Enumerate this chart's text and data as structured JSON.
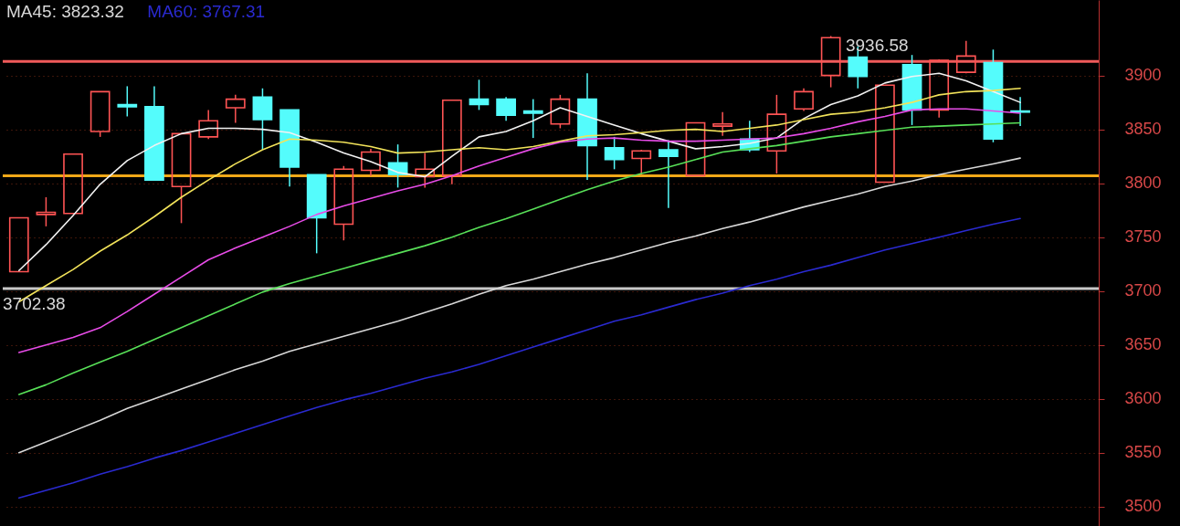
{
  "chart_data": {
    "type": "candlestick",
    "categories": [
      null,
      null,
      null,
      null,
      null,
      null,
      null,
      null,
      null,
      null,
      null,
      null,
      null,
      null,
      null,
      null,
      null,
      null,
      null,
      null,
      null,
      null,
      null,
      null,
      null,
      null,
      null,
      null,
      null,
      null,
      null,
      null,
      null,
      null,
      null,
      null,
      null,
      null
    ],
    "ohlc": [
      [
        3718,
        3768,
        3718,
        3768
      ],
      [
        3771,
        3787,
        3760,
        3773
      ],
      [
        3772,
        3827,
        3772,
        3827
      ],
      [
        3848,
        3885,
        3843,
        3885
      ],
      [
        3873,
        3890,
        3862,
        3871
      ],
      [
        3871,
        3890,
        3803,
        3803
      ],
      [
        3797,
        3846,
        3763,
        3846
      ],
      [
        3843,
        3868,
        3841,
        3858
      ],
      [
        3870,
        3882,
        3856,
        3878
      ],
      [
        3880,
        3888,
        3831,
        3859
      ],
      [
        3868,
        3868,
        3797,
        3815
      ],
      [
        3808,
        3808,
        3735,
        3768
      ],
      [
        3762,
        3816,
        3747,
        3813
      ],
      [
        3812,
        3832,
        3807,
        3829
      ],
      [
        3819,
        3836,
        3796,
        3808
      ],
      [
        3806,
        3828,
        3796,
        3813
      ],
      [
        3807,
        3877,
        3799,
        3877
      ],
      [
        3878,
        3896,
        3868,
        3873
      ],
      [
        3878,
        3880,
        3858,
        3863
      ],
      [
        3867,
        3878,
        3842,
        3865
      ],
      [
        3855,
        3882,
        3851,
        3878
      ],
      [
        3878,
        3902,
        3803,
        3835
      ],
      [
        3833,
        3843,
        3813,
        3822
      ],
      [
        3823,
        3831,
        3808,
        3830
      ],
      [
        3831,
        3840,
        3777,
        3825
      ],
      [
        3807,
        3856,
        3807,
        3856
      ],
      [
        3853,
        3866,
        3844,
        3855
      ],
      [
        3841,
        3858,
        3829,
        3831
      ],
      [
        3830,
        3882,
        3809,
        3864
      ],
      [
        3869,
        3888,
        3867,
        3885
      ],
      [
        3900,
        3936.58,
        3889,
        3935
      ],
      [
        3917,
        3927,
        3888,
        3899
      ],
      [
        3801,
        3891,
        3801,
        3891
      ],
      [
        3910,
        3919,
        3854,
        3868
      ],
      [
        3868,
        3915,
        3861,
        3914
      ],
      [
        3903,
        3932,
        3902,
        3918
      ],
      [
        3912,
        3924,
        3838,
        3841
      ],
      [
        3867,
        3880,
        3853,
        3866
      ]
    ],
    "colors": [
      "#ff5454",
      "#ff5454",
      "#ff5454",
      "#ff5454",
      "#54fcfc",
      "#54fcfc",
      "#ff5454",
      "#ff5454",
      "#ff5454",
      "#54fcfc",
      "#54fcfc",
      "#54fcfc",
      "#ff5454",
      "#ff5454",
      "#54fcfc",
      "#ff5454",
      "#ff5454",
      "#54fcfc",
      "#54fcfc",
      "#54fcfc",
      "#ff5454",
      "#54fcfc",
      "#54fcfc",
      "#ff5454",
      "#54fcfc",
      "#ff5454",
      "#ff5454",
      "#54fcfc",
      "#ff5454",
      "#ff5454",
      "#ff5454",
      "#54fcfc",
      "#ff5454",
      "#54fcfc",
      "#ff5454",
      "#ff5454",
      "#54fcfc",
      "#54fcfc"
    ],
    "series": [
      {
        "type": "line",
        "color": "#f2f2f2",
        "values": [
          3719,
          3743,
          3770,
          3799,
          3821,
          3835,
          3846,
          3851,
          3851,
          3850,
          3847,
          3838,
          3828,
          3820,
          3810,
          3806,
          3825,
          3843,
          3848,
          3858,
          3870,
          3862,
          3854,
          3846,
          3839,
          3832,
          3834,
          3837,
          3842,
          3860,
          3873,
          3881,
          3893,
          3899,
          3902,
          3895,
          3885,
          3875
        ]
      },
      {
        "type": "line",
        "color": "#f2e35a",
        "values": [
          3690,
          3705,
          3720,
          3737,
          3752,
          3769,
          3787,
          3803,
          3818,
          3831,
          3841,
          3840,
          3838,
          3834,
          3828,
          3829,
          3831,
          3833,
          3831,
          3834,
          3839,
          3844,
          3845,
          3847,
          3849,
          3850,
          3848,
          3851,
          3854,
          3859,
          3864,
          3866,
          3870,
          3875,
          3882,
          3885,
          3886,
          3888
        ]
      },
      {
        "type": "line",
        "color": "#e84ce8",
        "values": [
          3643,
          3650,
          3657,
          3666,
          3681,
          3697,
          3713,
          3729,
          3740,
          3750,
          3760,
          3771,
          3779,
          3786,
          3793,
          3799,
          3807,
          3816,
          3824,
          3832,
          3838,
          3841,
          3842,
          3840,
          3839,
          3839,
          3840,
          3841,
          3842,
          3846,
          3851,
          3857,
          3862,
          3868,
          3869,
          3869,
          3867,
          3865
        ]
      },
      {
        "type": "line",
        "color": "#58e058",
        "values": [
          3604,
          3613,
          3624,
          3634,
          3644,
          3655,
          3666,
          3677,
          3688,
          3699,
          3707,
          3714,
          3721,
          3728,
          3735,
          3742,
          3750,
          3759,
          3767,
          3776,
          3785,
          3794,
          3802,
          3809,
          3815,
          3822,
          3829,
          3832,
          3835,
          3839,
          3843,
          3846,
          3849,
          3852,
          3853,
          3854,
          3855,
          3856
        ]
      },
      {
        "type": "line",
        "name": "MA45: 3823.32",
        "color": "#d8d8d8",
        "values": [
          3550,
          3560,
          3570,
          3580,
          3591,
          3600,
          3609,
          3618,
          3627,
          3635,
          3644,
          3651,
          3658,
          3665,
          3672,
          3680,
          3688,
          3697,
          3705,
          3711,
          3718,
          3725,
          3731,
          3738,
          3745,
          3751,
          3758,
          3764,
          3771,
          3778,
          3784,
          3790,
          3797,
          3802,
          3808,
          3813,
          3818,
          3823.32
        ]
      },
      {
        "type": "line",
        "name": "MA60: 3767.31",
        "color": "#2a2ad0",
        "values": [
          3508,
          3515,
          3522,
          3530,
          3537,
          3545,
          3552,
          3560,
          3568,
          3576,
          3584,
          3592,
          3599,
          3605,
          3612,
          3619,
          3625,
          3632,
          3640,
          3648,
          3656,
          3664,
          3672,
          3678,
          3685,
          3692,
          3698,
          3705,
          3711,
          3718,
          3724,
          3731,
          3738,
          3744,
          3750,
          3756,
          3762,
          3767.31
        ]
      }
    ],
    "ylim": [
      3482,
      3970
    ],
    "yticks": [
      3500,
      3550,
      3600,
      3650,
      3700,
      3750,
      3800,
      3850,
      3900
    ],
    "ref_lines": [
      {
        "axis": "y",
        "value": 3913,
        "color": "#f05a5a"
      },
      {
        "axis": "y",
        "value": 3807,
        "color": "#f0a818"
      },
      {
        "axis": "y",
        "value": 3702.38,
        "color": "#c8c8c8"
      }
    ],
    "annotations": [
      "3936.58",
      {
        "text": "3702.38",
        "y": 3702.38
      }
    ],
    "legend": "top left",
    "grid": "y",
    "tick_labels": "y"
  }
}
